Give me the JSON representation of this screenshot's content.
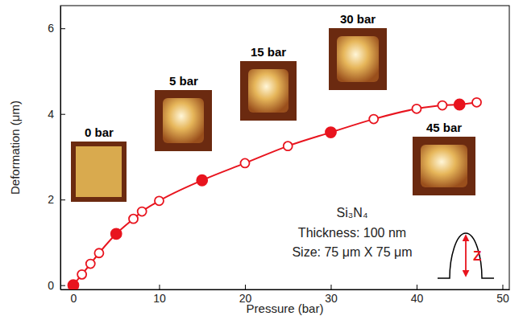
{
  "chart_data": {
    "type": "scatter",
    "x_label": "Pressure (bar)",
    "y_label": "Deformation (μm)",
    "xlim": [
      -1.5,
      50.8
    ],
    "ylim": [
      -0.1,
      6.53
    ],
    "xticks": [
      0,
      10,
      20,
      30,
      40,
      50
    ],
    "yticks": [
      0,
      2,
      4,
      6
    ],
    "grid": false,
    "series": [
      {
        "type": "line",
        "marker": "none",
        "color": "#e8141e",
        "x": [
          0,
          1,
          2,
          3,
          5,
          7,
          8,
          10,
          15,
          20,
          25,
          30,
          35,
          40,
          43,
          45,
          47
        ],
        "values": [
          0,
          0.25,
          0.5,
          0.75,
          1.2,
          1.55,
          1.72,
          1.97,
          2.45,
          2.85,
          3.25,
          3.57,
          3.88,
          4.12,
          4.2,
          4.22,
          4.27
        ]
      },
      {
        "type": "scatter",
        "marker": "circle-open",
        "color": "#e8141e",
        "x": [
          1,
          2,
          3,
          7,
          8,
          10,
          20,
          25,
          35,
          40,
          43,
          47
        ],
        "values": [
          0.25,
          0.5,
          0.75,
          1.55,
          1.72,
          1.97,
          2.85,
          3.25,
          3.88,
          4.12,
          4.2,
          4.27
        ]
      },
      {
        "type": "scatter",
        "marker": "circle",
        "color": "#e8141e",
        "x": [
          0,
          5,
          15,
          30,
          45
        ],
        "values": [
          0,
          1.2,
          2.45,
          3.57,
          4.22
        ]
      }
    ],
    "annotations": [
      "0 bar",
      "5 bar",
      "15 bar",
      "30 bar",
      "45 bar"
    ],
    "text": [
      "Si₃N₄",
      "Thickness: 100 nm",
      "Size: 75 μm X 75 μm"
    ],
    "schematic_label": "Z"
  }
}
